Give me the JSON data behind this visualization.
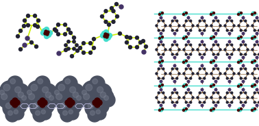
{
  "background_color": "#ffffff",
  "figsize": [
    3.78,
    1.84
  ],
  "dpi": 100,
  "colors": {
    "yg": "#ccee00",
    "teal": "#44ddcc",
    "dark": "#222233",
    "purple": "#443366",
    "dark_red": "#550000",
    "gray_sphere": "#4a5060",
    "gray_light": "#7a8090",
    "brown": "#8B6030",
    "navy": "#223366",
    "white": "#ffffff"
  }
}
